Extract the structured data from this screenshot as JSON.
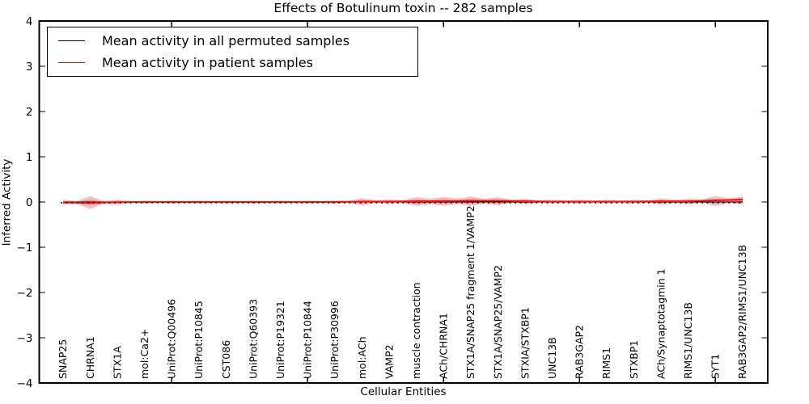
{
  "chart": {
    "title": "Effects of Botulinum toxin -- 282 samples",
    "xlabel": "Cellular Entities",
    "ylabel": "Inferred Activity"
  },
  "chart_data": {
    "type": "violin",
    "title": "Effects of Botulinum toxin -- 282 samples",
    "xlabel": "Cellular Entities",
    "ylabel": "Inferred Activity",
    "ylim": [
      -4,
      4
    ],
    "y_tick_values": [
      4,
      3,
      2,
      1,
      0,
      -1,
      -2,
      -3,
      -4
    ],
    "y_tick_labels": [
      "4",
      "3",
      "2",
      "1",
      "0",
      "−1",
      "−2",
      "−3",
      "−4"
    ],
    "x_major_tick_positions": [
      5,
      10,
      15,
      20,
      25
    ],
    "grid": false,
    "legend_position": "upper left",
    "categories": [
      "SNAP25",
      "CHRNA1",
      "STX1A",
      "mol:Ca2+",
      "UniProt:Q00496",
      "UniProt:P10845",
      "CST086",
      "UniProt:Q60393",
      "UniProt:P19321",
      "UniProt:P10844",
      "UniProt:P30996",
      "mol:ACh",
      "VAMP2",
      "muscle contraction",
      "ACh/CHRNA1",
      "STX1A/SNAP25 fragment 1/VAMP2",
      "STX1A/SNAP25/VAMP2",
      "STXIA/STXBP1",
      "UNC13B",
      "RAB3GAP2",
      "RIMS1",
      "STXBP1",
      "ACh/Synaptotagmin 1",
      "RIMS1/UNC13B",
      "SYT1",
      "RAB3GAP2/RIMS1/UNC13B"
    ],
    "series": [
      {
        "name": "Mean activity in all permuted samples",
        "color": "#000000",
        "values": [
          0,
          0,
          0,
          0,
          0,
          0,
          0,
          0,
          0,
          0,
          0,
          0,
          0,
          0,
          0,
          0,
          0,
          0,
          0,
          0,
          0,
          0,
          0,
          0,
          0,
          0
        ]
      },
      {
        "name": "Mean activity in patient samples",
        "color": "#ff0000",
        "values": [
          -0.01,
          -0.02,
          -0.004,
          0,
          0,
          0,
          0,
          0,
          0,
          0,
          0,
          0.009,
          0.009,
          0.018,
          0.02,
          0.027,
          0.027,
          0.018,
          0.009,
          0.009,
          0.009,
          0.009,
          0.016,
          0.016,
          0.036,
          0.054
        ]
      }
    ],
    "band_outer_halfwidth": [
      0.054,
      0.143,
      0.054,
      0.032,
      0.032,
      0.032,
      0.032,
      0.032,
      0.032,
      0.032,
      0.036,
      0.08,
      0.054,
      0.098,
      0.098,
      0.107,
      0.089,
      0.063,
      0.045,
      0.045,
      0.045,
      0.045,
      0.071,
      0.063,
      0.107,
      0.089
    ],
    "band_inner_halfwidth": [
      0.027,
      0.063,
      0.027,
      0.016,
      0.016,
      0.016,
      0.016,
      0.016,
      0.016,
      0.016,
      0.018,
      0.036,
      0.027,
      0.045,
      0.045,
      0.048,
      0.04,
      0.028,
      0.021,
      0.021,
      0.021,
      0.021,
      0.032,
      0.028,
      0.048,
      0.054
    ],
    "band_color": "rgba(228,26,28,0.28)"
  }
}
